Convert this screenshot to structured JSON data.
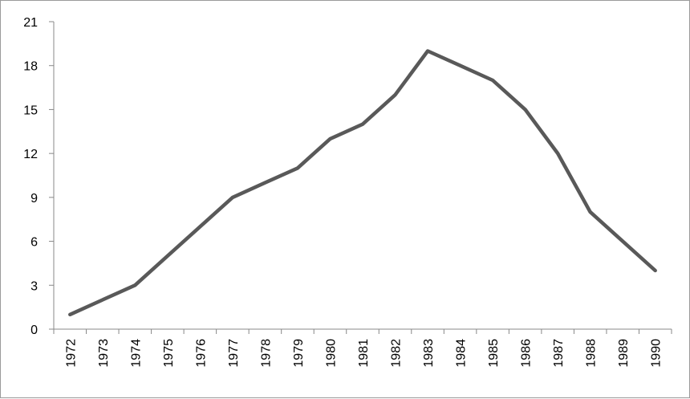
{
  "chart_data": {
    "type": "line",
    "title": "",
    "xlabel": "",
    "ylabel": "",
    "categories": [
      "1972",
      "1973",
      "1974",
      "1975",
      "1976",
      "1977",
      "1978",
      "1979",
      "1980",
      "1981",
      "1982",
      "1983",
      "1984",
      "1985",
      "1986",
      "1987",
      "1988",
      "1989",
      "1990"
    ],
    "series": [
      {
        "values": [
          1,
          2,
          3,
          5,
          7,
          9,
          10,
          11,
          13,
          14,
          16,
          19,
          18,
          17,
          15,
          12,
          8,
          6,
          4
        ]
      }
    ],
    "ylim": [
      0,
      21
    ],
    "yticks": [
      "0",
      "3",
      "6",
      "9",
      "12",
      "15",
      "18",
      "21"
    ],
    "grid": false,
    "legend": "none",
    "line_color": "#595959",
    "axis_color": "#888888"
  }
}
